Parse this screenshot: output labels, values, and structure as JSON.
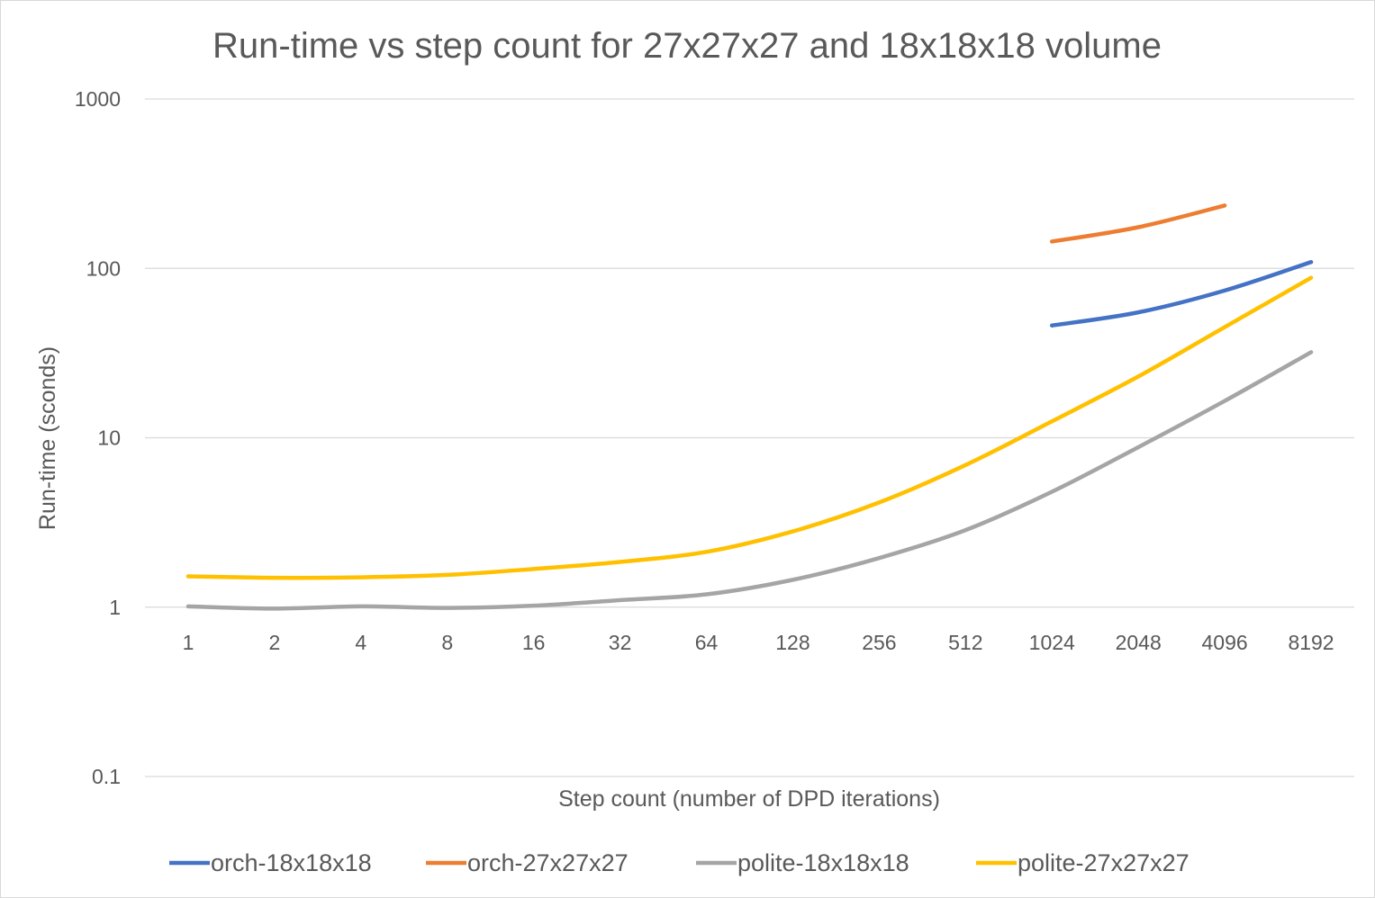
{
  "chart_data": {
    "type": "line",
    "title": "Run-time vs step count for 27x27x27 and 18x18x18 volume",
    "xlabel": "Step count (number of DPD iterations)",
    "ylabel": "Run-time (sconds)",
    "yscale": "log",
    "ylim": [
      0.1,
      1000
    ],
    "yticks": [
      "0.1",
      "1",
      "10",
      "100",
      "1000"
    ],
    "grid": true,
    "legend_position": "bottom",
    "categories": [
      "1",
      "2",
      "4",
      "8",
      "16",
      "32",
      "64",
      "128",
      "256",
      "512",
      "1024",
      "2048",
      "4096",
      "8192"
    ],
    "series": [
      {
        "name": "orch-18x18x18",
        "color": "#4472C4",
        "values": [
          null,
          null,
          null,
          null,
          null,
          null,
          null,
          null,
          null,
          null,
          46,
          55,
          74,
          109
        ]
      },
      {
        "name": "orch-27x27x27",
        "color": "#ED7D31",
        "values": [
          null,
          null,
          null,
          null,
          null,
          null,
          null,
          null,
          null,
          null,
          144,
          175,
          235,
          null
        ]
      },
      {
        "name": "polite-18x18x18",
        "color": "#A5A5A5",
        "values": [
          1.01,
          0.98,
          1.01,
          0.99,
          1.02,
          1.1,
          1.19,
          1.45,
          1.95,
          2.85,
          4.8,
          8.8,
          16.5,
          32
        ]
      },
      {
        "name": "polite-27x27x27",
        "color": "#FFC000",
        "values": [
          1.52,
          1.49,
          1.5,
          1.55,
          1.68,
          1.85,
          2.12,
          2.8,
          4.15,
          6.9,
          12.5,
          23,
          45,
          88
        ]
      }
    ]
  }
}
